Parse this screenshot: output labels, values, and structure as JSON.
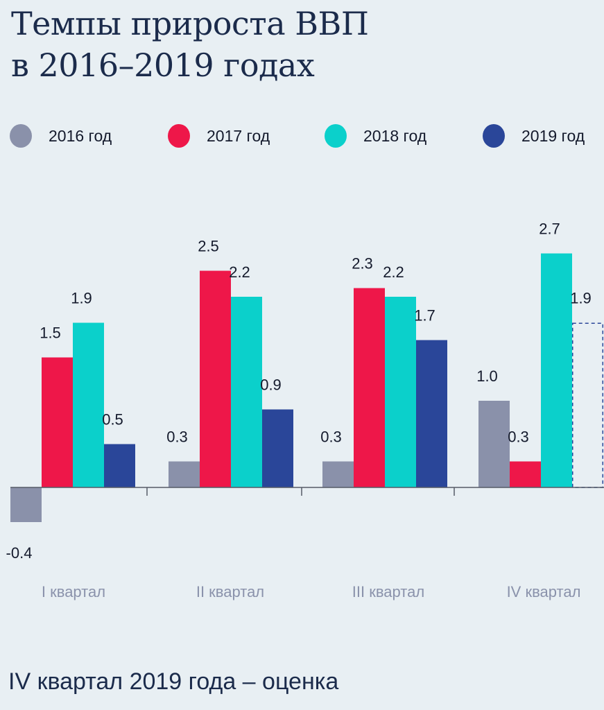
{
  "title_lines": [
    "Темпы прироста ВВП",
    "в 2016–2019 годах"
  ],
  "footnote": "IV квартал 2019 года – оценка",
  "colors": {
    "background": "#e8eff3",
    "2016": "#8a91aa",
    "2017": "#ee1749",
    "2018": "#0bd0cb",
    "2019": "#2a4699",
    "axis": "#555a66",
    "category_label": "#8a92ab",
    "value_label": "#141a2c"
  },
  "chart_data": {
    "type": "bar",
    "title": "Темпы прироста ВВП в 2016–2019 годах",
    "xlabel": "",
    "ylabel": "",
    "categories": [
      "I квартал",
      "II квартал",
      "III квартал",
      "IV квартал"
    ],
    "series": [
      {
        "name": "2016 год",
        "key": "2016",
        "values": [
          -0.4,
          0.3,
          0.3,
          1.0
        ],
        "labels": [
          "-0.4",
          "0.3",
          "0.3",
          "1.0"
        ]
      },
      {
        "name": "2017 год",
        "key": "2017",
        "values": [
          1.5,
          2.5,
          2.3,
          0.3
        ],
        "labels": [
          "1.5",
          "2.5",
          "2.3",
          "0.3"
        ]
      },
      {
        "name": "2018 год",
        "key": "2018",
        "values": [
          1.9,
          2.2,
          2.2,
          2.7
        ],
        "labels": [
          "1.9",
          "2.2",
          "2.2",
          "2.7"
        ]
      },
      {
        "name": "2019 год",
        "key": "2019",
        "values": [
          0.5,
          0.9,
          1.7,
          1.9
        ],
        "labels": [
          "0.5",
          "0.9",
          "1.7",
          "1.9"
        ],
        "estimated": [
          false,
          false,
          false,
          true
        ]
      }
    ],
    "ylim": [
      -0.4,
      2.7
    ],
    "grid": false,
    "legend": "top",
    "annotation": "IV квартал 2019 года – оценка"
  }
}
